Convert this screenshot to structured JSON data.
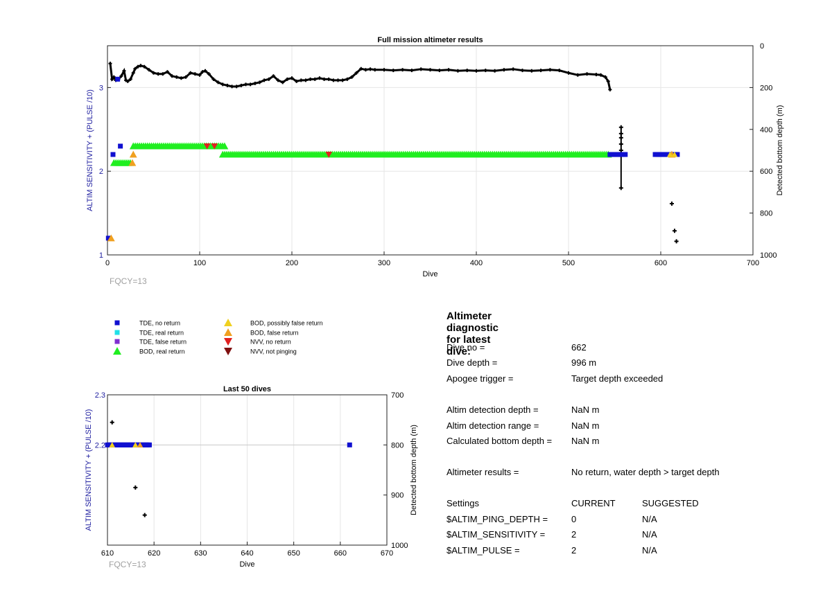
{
  "colors": {
    "tde_no_return": "#1010d0",
    "tde_real_return": "#20e0e8",
    "tde_false_return": "#8030d0",
    "bod_real_return": "#20ee20",
    "bod_possibly_false": "#f0d020",
    "bod_false_return": "#f0a020",
    "nvv_no_return": "#e02020",
    "nvv_not_pinging": "#801010",
    "bottom_depth": "#000000",
    "left_axis": "#2020a0",
    "fqcy": "#a0a0a0"
  },
  "chart_data": [
    {
      "type": "scatter",
      "title": "Full mission altimeter results",
      "xlabel": "Dive",
      "ylabel": "ALTIM SENSITIVITY + (PULSE /10)",
      "y2label": "Detected bottom depth (m)",
      "xlim": [
        0,
        700
      ],
      "ylim": [
        1,
        3.5
      ],
      "y2lim": [
        0,
        1000
      ],
      "y2_reversed": true,
      "grid": true,
      "xticks": [
        "0",
        "100",
        "200",
        "300",
        "400",
        "500",
        "600",
        "700"
      ],
      "yticks": [
        "1",
        "2",
        "3"
      ],
      "y2ticks": [
        "0",
        "200",
        "400",
        "600",
        "800",
        "1000"
      ],
      "annotation": "FQCY=13",
      "bottom_depth": {
        "dives": [
          3,
          5,
          7,
          9,
          12,
          15,
          18,
          20,
          22,
          25,
          28,
          30,
          33,
          36,
          40,
          45,
          50,
          55,
          60,
          65,
          70,
          75,
          80,
          85,
          90,
          95,
          100,
          103,
          106,
          110,
          115,
          120,
          125,
          130,
          135,
          140,
          145,
          150,
          155,
          160,
          165,
          170,
          175,
          180,
          185,
          190,
          195,
          200,
          205,
          210,
          215,
          220,
          225,
          230,
          235,
          240,
          245,
          250,
          255,
          260,
          265,
          270,
          275,
          280,
          285,
          290,
          300,
          310,
          320,
          330,
          340,
          350,
          360,
          370,
          380,
          390,
          400,
          410,
          420,
          430,
          440,
          450,
          460,
          470,
          480,
          490,
          500,
          510,
          520,
          530,
          535,
          540,
          543,
          545
        ],
        "depths": [
          85,
          160,
          150,
          165,
          160,
          145,
          120,
          165,
          170,
          160,
          130,
          110,
          100,
          95,
          100,
          115,
          130,
          135,
          135,
          125,
          145,
          150,
          155,
          150,
          130,
          135,
          140,
          125,
          120,
          135,
          160,
          175,
          185,
          190,
          195,
          195,
          190,
          185,
          185,
          180,
          175,
          165,
          160,
          145,
          165,
          175,
          160,
          155,
          170,
          165,
          165,
          160,
          160,
          155,
          160,
          160,
          165,
          165,
          165,
          160,
          150,
          130,
          110,
          115,
          112,
          115,
          115,
          118,
          115,
          118,
          112,
          115,
          118,
          115,
          120,
          118,
          120,
          118,
          120,
          115,
          112,
          118,
          120,
          118,
          115,
          118,
          130,
          140,
          135,
          138,
          140,
          150,
          170,
          210
        ]
      },
      "vertical_segment": {
        "dive": 557,
        "depth_top": 390,
        "depth_bottom": 680,
        "points": [
          390,
          420,
          440,
          470,
          500,
          680
        ]
      },
      "outlier_depths": [
        {
          "dive": 612,
          "depth": 755
        },
        {
          "dive": 615,
          "depth": 885
        },
        {
          "dive": 617,
          "depth": 935
        }
      ],
      "bod_real_runs": [
        {
          "from": 28,
          "to": 128,
          "value": 2.3
        },
        {
          "from": 125,
          "to": 545,
          "value": 2.2
        },
        {
          "from": 7,
          "to": 25,
          "value": 2.1
        }
      ],
      "tde_no_return_runs": [
        {
          "from": 545,
          "to": 562,
          "value": 2.2
        },
        {
          "from": 594,
          "to": 619,
          "value": 2.2
        }
      ],
      "tde_no_return_points": [
        {
          "dive": 6,
          "value": 2.2
        },
        {
          "dive": 14,
          "value": 2.3
        },
        {
          "dive": 11,
          "value": 3.1
        },
        {
          "dive": 1,
          "value": 1.2
        }
      ],
      "bod_false_points": [
        {
          "dive": 4,
          "value": 1.2
        },
        {
          "dive": 28,
          "value": 2.2
        },
        {
          "dive": 27,
          "value": 2.1
        },
        {
          "dive": 612,
          "value": 2.2
        }
      ],
      "bod_possibly_false_points": [
        {
          "dive": 615,
          "value": 2.2
        },
        {
          "dive": 610,
          "value": 2.2
        }
      ],
      "nvv_no_return_points": [
        {
          "dive": 108,
          "value": 2.3
        },
        {
          "dive": 116,
          "value": 2.3
        },
        {
          "dive": 240,
          "value": 2.2
        }
      ]
    },
    {
      "type": "scatter",
      "title": "Last 50 dives",
      "xlabel": "Dive",
      "ylabel": "ALTIM SENSITIVITY + (PULSE /10)",
      "y2label": "Detected bottom depth (m)",
      "xlim": [
        610,
        670
      ],
      "ylim": [
        2.0,
        2.3
      ],
      "y2lim": [
        700,
        1000
      ],
      "y2_reversed": true,
      "grid": true,
      "xticks": [
        "610",
        "620",
        "630",
        "640",
        "650",
        "660",
        "670"
      ],
      "yticks": [
        "2.2",
        "2.3"
      ],
      "y2ticks": [
        "700",
        "800",
        "900",
        "1000"
      ],
      "annotation": "FQCY=13",
      "tde_no_return_run": {
        "from": 610,
        "to": 619,
        "value": 2.2
      },
      "tde_no_return_points": [
        {
          "dive": 662,
          "value": 2.2
        }
      ],
      "bod_possibly_false_points": [
        {
          "dive": 611,
          "value": 2.2
        },
        {
          "dive": 616,
          "value": 2.2
        }
      ],
      "bod_false_points": [
        {
          "dive": 617,
          "value": 2.2
        }
      ],
      "bottom_depth_points": [
        {
          "dive": 611,
          "depth": 755
        },
        {
          "dive": 616,
          "depth": 885
        },
        {
          "dive": 618,
          "depth": 940
        }
      ],
      "connector": {
        "from": 619,
        "to": 662,
        "value": 2.2
      }
    }
  ],
  "legend": [
    {
      "label": "TDE, no return",
      "marker": "square",
      "color": "#1010d0"
    },
    {
      "label": "TDE, real return",
      "marker": "square",
      "color": "#20e0e8"
    },
    {
      "label": "TDE, false return",
      "marker": "square",
      "color": "#8030d0"
    },
    {
      "label": "BOD, real return",
      "marker": "triangle-up",
      "color": "#20ee20"
    },
    {
      "label": "BOD, possibly false return",
      "marker": "triangle-up",
      "color": "#f0d020"
    },
    {
      "label": "BOD, false return",
      "marker": "triangle-up",
      "color": "#f0a020"
    },
    {
      "label": "NVV, no return",
      "marker": "triangle-down",
      "color": "#e02020"
    },
    {
      "label": "NVV, not pinging",
      "marker": "triangle-down",
      "color": "#801010"
    }
  ],
  "diagnostic": {
    "title": "Altimeter diagnostic for latest dive:",
    "dive_no_label": "Dive no =",
    "dive_no": "662",
    "dive_depth_label": "Dive depth =",
    "dive_depth": "996 m",
    "apogee_label": "Apogee trigger =",
    "apogee": "Target depth exceeded",
    "det_depth_label": "Altim detection depth =",
    "det_depth": "NaN m",
    "det_range_label": "Altim detection range =",
    "det_range": "NaN m",
    "calc_depth_label": "Calculated bottom depth =",
    "calc_depth": "NaN m",
    "results_label": "Altimeter results =",
    "results": "No return, water depth > target depth",
    "settings_label": "Settings",
    "current_label": "CURRENT",
    "suggested_label": "SUGGESTED",
    "ping_label": "$ALTIM_PING_DEPTH =",
    "ping_current": "0",
    "ping_suggested": "N/A",
    "sens_label": "$ALTIM_SENSITIVITY =",
    "sens_current": "2",
    "sens_suggested": "N/A",
    "pulse_label": "$ALTIM_PULSE =",
    "pulse_current": "2",
    "pulse_suggested": "N/A"
  }
}
